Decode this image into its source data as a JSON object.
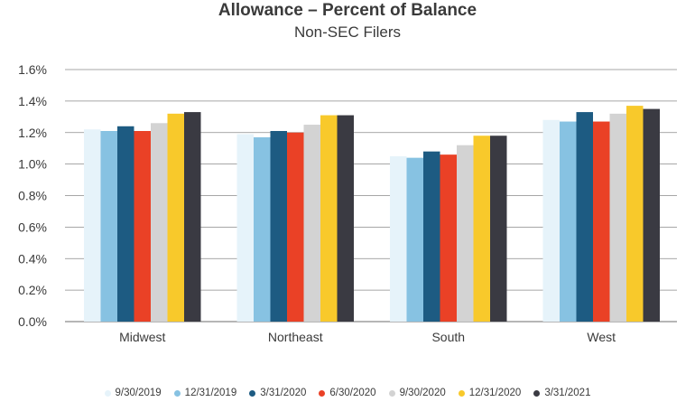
{
  "chart_data": {
    "type": "bar",
    "title": "Allowance – Percent of Balance",
    "subtitle": "Non-SEC Filers",
    "xlabel": "",
    "ylabel": "",
    "ylim": [
      0.0,
      1.6
    ],
    "yticks": [
      "0.0%",
      "0.2%",
      "0.4%",
      "0.6%",
      "0.8%",
      "1.0%",
      "1.2%",
      "1.4%",
      "1.6%"
    ],
    "grid": "horizontal",
    "legend_position": "bottom",
    "categories": [
      "Midwest",
      "Northeast",
      "South",
      "West"
    ],
    "series": [
      {
        "name": "9/30/2019",
        "color": "#e6f3fa",
        "values": [
          1.22,
          1.19,
          1.05,
          1.28
        ]
      },
      {
        "name": "12/31/2019",
        "color": "#87c2e2",
        "values": [
          1.21,
          1.17,
          1.04,
          1.27
        ]
      },
      {
        "name": "3/31/2020",
        "color": "#1d5b82",
        "values": [
          1.24,
          1.21,
          1.08,
          1.33
        ]
      },
      {
        "name": "6/30/2020",
        "color": "#ea4126",
        "values": [
          1.21,
          1.2,
          1.06,
          1.27
        ]
      },
      {
        "name": "9/30/2020",
        "color": "#d3d3d3",
        "values": [
          1.26,
          1.25,
          1.12,
          1.32
        ]
      },
      {
        "name": "12/31/2020",
        "color": "#f8c92b",
        "values": [
          1.32,
          1.31,
          1.18,
          1.37
        ]
      },
      {
        "name": "3/31/2021",
        "color": "#3a3a42",
        "values": [
          1.33,
          1.31,
          1.18,
          1.35
        ]
      }
    ]
  }
}
